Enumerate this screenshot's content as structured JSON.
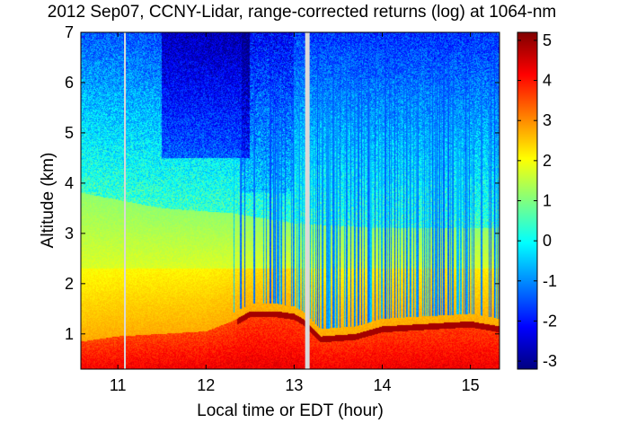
{
  "chart_data": {
    "type": "heatmap",
    "title": "2012 Sep07, CCNY-Lidar, range-corrected returns (log) at 1064-nm",
    "xlabel": "Local time or EDT (hour)",
    "ylabel": "Altitude (km)",
    "xlim": [
      10.58,
      15.33
    ],
    "ylim": [
      0.3,
      7.0
    ],
    "x_ticks": [
      "11",
      "12",
      "13",
      "14",
      "15"
    ],
    "y_ticks": [
      "1",
      "2",
      "3",
      "4",
      "5",
      "6",
      "7"
    ],
    "colorbar": {
      "colormap": "jet",
      "range": [
        -3.2,
        5.2
      ],
      "ticks": [
        "5",
        "4",
        "3",
        "2",
        "1",
        "0",
        "-1",
        "-2",
        "-3"
      ]
    },
    "colors": {
      "jet_dark_blue": "#00008f",
      "jet_blue": "#0000ff",
      "jet_cyan": "#00ffff",
      "jet_yellow": "#ffff00",
      "jet_red": "#ff0000",
      "jet_dark_red": "#800000",
      "data_gap": "#d9d9d9"
    },
    "features": {
      "data_gaps_hour": [
        11.08,
        13.15
      ],
      "boundary_layer_top_km": [
        {
          "x": 10.6,
          "y": 0.85
        },
        {
          "x": 11.0,
          "y": 0.95
        },
        {
          "x": 11.5,
          "y": 1.0
        },
        {
          "x": 12.0,
          "y": 1.05
        },
        {
          "x": 12.3,
          "y": 1.25
        },
        {
          "x": 12.5,
          "y": 1.45
        },
        {
          "x": 12.8,
          "y": 1.45
        },
        {
          "x": 13.0,
          "y": 1.4
        },
        {
          "x": 13.1,
          "y": 1.3
        },
        {
          "x": 13.3,
          "y": 0.95
        },
        {
          "x": 13.7,
          "y": 1.0
        },
        {
          "x": 14.0,
          "y": 1.15
        },
        {
          "x": 14.5,
          "y": 1.2
        },
        {
          "x": 15.0,
          "y": 1.25
        },
        {
          "x": 15.33,
          "y": 1.15
        }
      ],
      "residual_layer_top_km": [
        {
          "x": 10.6,
          "y": 3.8
        },
        {
          "x": 11.5,
          "y": 3.5
        },
        {
          "x": 12.3,
          "y": 3.4
        },
        {
          "x": 13.0,
          "y": 3.2
        },
        {
          "x": 14.0,
          "y": 3.1
        },
        {
          "x": 15.33,
          "y": 3.1
        }
      ]
    }
  }
}
